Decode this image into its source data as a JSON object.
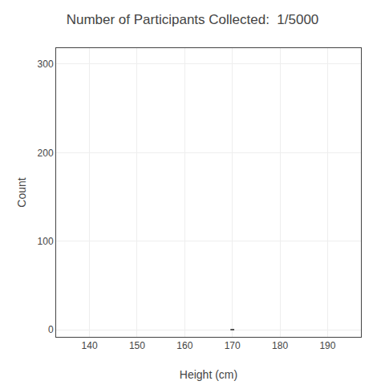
{
  "chart_data": {
    "type": "bar",
    "title": "Number of Participants Collected:  1/5000",
    "xlabel": "Height (cm)",
    "ylabel": "Count",
    "x": [
      170
    ],
    "values": [
      1
    ],
    "color": "#555555",
    "xlim": [
      133,
      197
    ],
    "xticks": [
      140,
      150,
      160,
      170,
      180,
      190
    ],
    "ylim": [
      -8,
      318
    ],
    "yticks": [
      0,
      100,
      200,
      300
    ],
    "grid": true
  }
}
